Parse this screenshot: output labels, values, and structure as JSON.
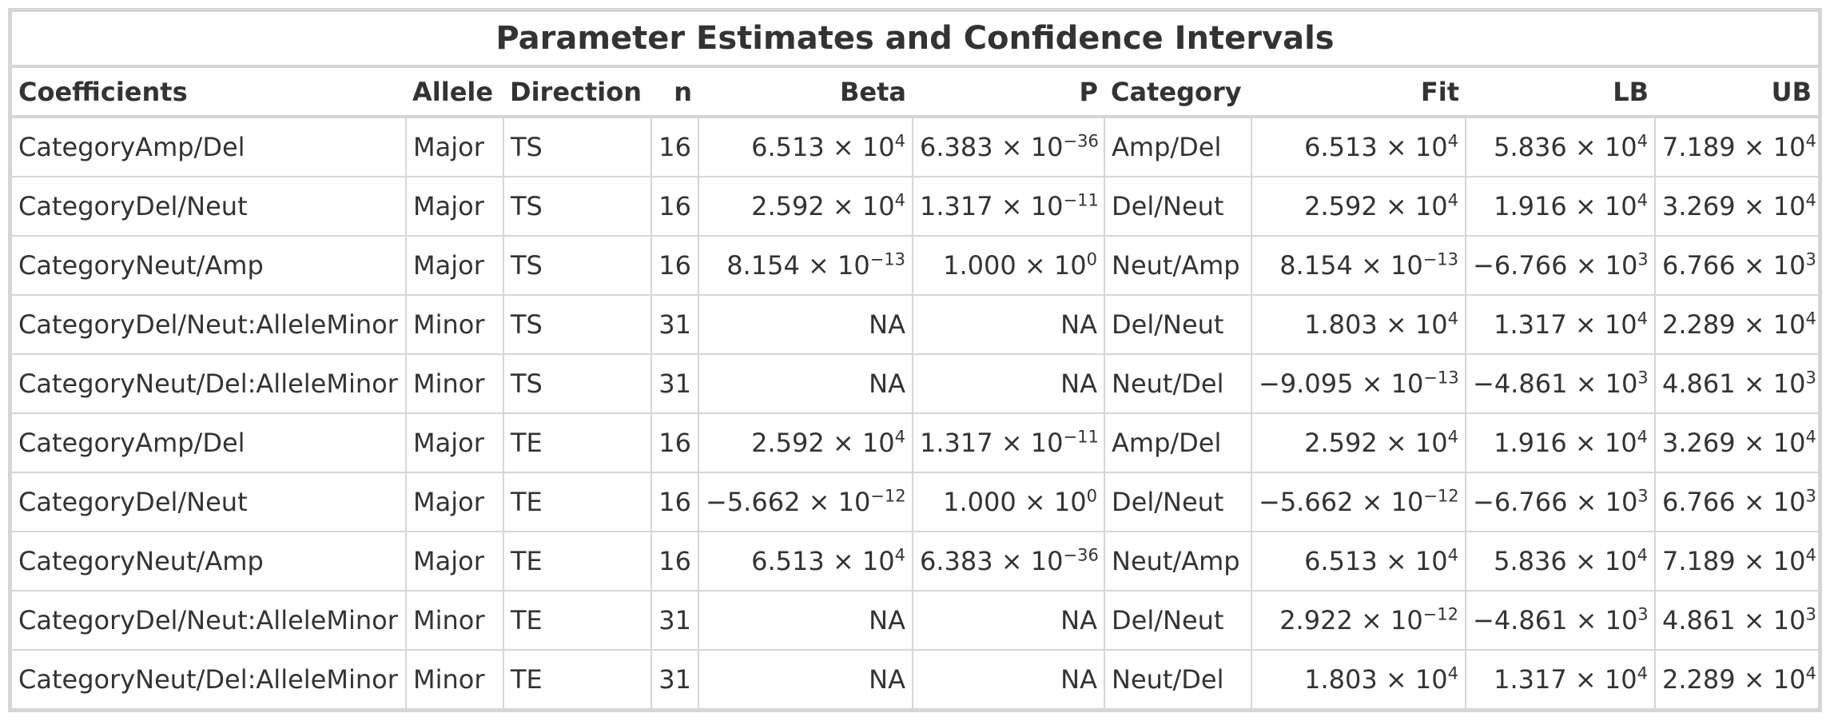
{
  "title": "Parameter Estimates and Confidence Intervals",
  "columns": [
    "Coefficients",
    "Allele",
    "Direction",
    "n",
    "Beta",
    "P",
    "Category",
    "Fit",
    "LB",
    "UB"
  ],
  "rows": [
    [
      "CategoryAmp/Del",
      "Major",
      "TS",
      "16",
      "6.513 × 10^4",
      "6.383 × 10^−36",
      "Amp/Del",
      "6.513 × 10^4",
      "5.836 × 10^4",
      "7.189 × 10^4"
    ],
    [
      "CategoryDel/Neut",
      "Major",
      "TS",
      "16",
      "2.592 × 10^4",
      "1.317 × 10^−11",
      "Del/Neut",
      "2.592 × 10^4",
      "1.916 × 10^4",
      "3.269 × 10^4"
    ],
    [
      "CategoryNeut/Amp",
      "Major",
      "TS",
      "16",
      "8.154 × 10^−13",
      "1.000 × 10^0",
      "Neut/Amp",
      "8.154 × 10^−13",
      "−6.766 × 10^3",
      "6.766 × 10^3"
    ],
    [
      "CategoryDel/Neut:AlleleMinor",
      "Minor",
      "TS",
      "31",
      "NA",
      "NA",
      "Del/Neut",
      "1.803 × 10^4",
      "1.317 × 10^4",
      "2.289 × 10^4"
    ],
    [
      "CategoryNeut/Del:AlleleMinor",
      "Minor",
      "TS",
      "31",
      "NA",
      "NA",
      "Neut/Del",
      "−9.095 × 10^−13",
      "−4.861 × 10^3",
      "4.861 × 10^3"
    ],
    [
      "CategoryAmp/Del",
      "Major",
      "TE",
      "16",
      "2.592 × 10^4",
      "1.317 × 10^−11",
      "Amp/Del",
      "2.592 × 10^4",
      "1.916 × 10^4",
      "3.269 × 10^4"
    ],
    [
      "CategoryDel/Neut",
      "Major",
      "TE",
      "16",
      "−5.662 × 10^−12",
      "1.000 × 10^0",
      "Del/Neut",
      "−5.662 × 10^−12",
      "−6.766 × 10^3",
      "6.766 × 10^3"
    ],
    [
      "CategoryNeut/Amp",
      "Major",
      "TE",
      "16",
      "6.513 × 10^4",
      "6.383 × 10^−36",
      "Neut/Amp",
      "6.513 × 10^4",
      "5.836 × 10^4",
      "7.189 × 10^4"
    ],
    [
      "CategoryDel/Neut:AlleleMinor",
      "Minor",
      "TE",
      "31",
      "NA",
      "NA",
      "Del/Neut",
      "2.922 × 10^−12",
      "−4.861 × 10^3",
      "4.861 × 10^3"
    ],
    [
      "CategoryNeut/Del:AlleleMinor",
      "Minor",
      "TE",
      "31",
      "NA",
      "NA",
      "Neut/Del",
      "1.803 × 10^4",
      "1.317 × 10^4",
      "2.289 × 10^4"
    ]
  ]
}
